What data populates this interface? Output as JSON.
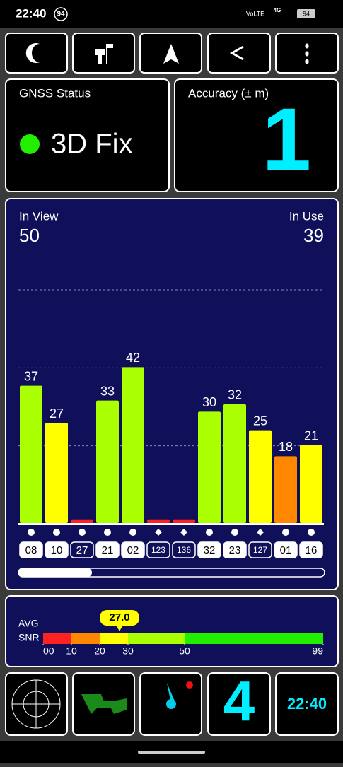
{
  "status_bar": {
    "time": "22:40",
    "badge": "94",
    "network": "VoLTE",
    "signal": "4G",
    "battery": "94"
  },
  "gnss_status": {
    "title": "GNSS Status",
    "value": "3D Fix"
  },
  "accuracy": {
    "title": "Accuracy (± m)",
    "value": "1"
  },
  "satellites": {
    "in_view_label": "In View",
    "in_view": "50",
    "in_use_label": "In Use",
    "in_use": "39",
    "chart_data": {
      "type": "bar",
      "ylim": [
        0,
        63
      ],
      "categories": [
        "08",
        "10",
        "27",
        "21",
        "02",
        "123",
        "136",
        "32",
        "23",
        "127",
        "01",
        "16"
      ],
      "values": [
        37,
        27,
        1,
        33,
        42,
        1,
        1,
        30,
        32,
        25,
        18,
        21
      ],
      "colors": [
        "#aaff00",
        "#ffff00",
        "#ff2222",
        "#aaff00",
        "#aaff00",
        "#ff2222",
        "#ff2222",
        "#aaff00",
        "#aaff00",
        "#ffff00",
        "#ff8800",
        "#ffff00"
      ],
      "markers": [
        "circle",
        "circle",
        "circle",
        "circle",
        "circle",
        "diamond",
        "diamond",
        "circle",
        "circle",
        "diamond",
        "circle",
        "circle"
      ],
      "used": [
        true,
        true,
        false,
        true,
        true,
        false,
        false,
        true,
        true,
        false,
        true,
        true
      ]
    }
  },
  "snr": {
    "label_1": "AVG",
    "label_2": "SNR",
    "chart_data": {
      "type": "gauge",
      "value": 27.0,
      "value_label": "27.0",
      "xlim": [
        0,
        99
      ],
      "xticks": [
        {
          "value": 0,
          "label": "00"
        },
        10,
        20,
        30,
        50,
        99
      ],
      "segments": [
        {
          "from": 0,
          "to": 10,
          "color": "#ff2222"
        },
        {
          "from": 10,
          "to": 20,
          "color": "#ff8800"
        },
        {
          "from": 20,
          "to": 30,
          "color": "#ffff00"
        },
        {
          "from": 30,
          "to": 50,
          "color": "#aaff00"
        },
        {
          "from": 50,
          "to": 99,
          "color": "#22ee00"
        }
      ]
    }
  },
  "bottom_tiles": {
    "satellite_count": "4",
    "clock": "22:40"
  }
}
